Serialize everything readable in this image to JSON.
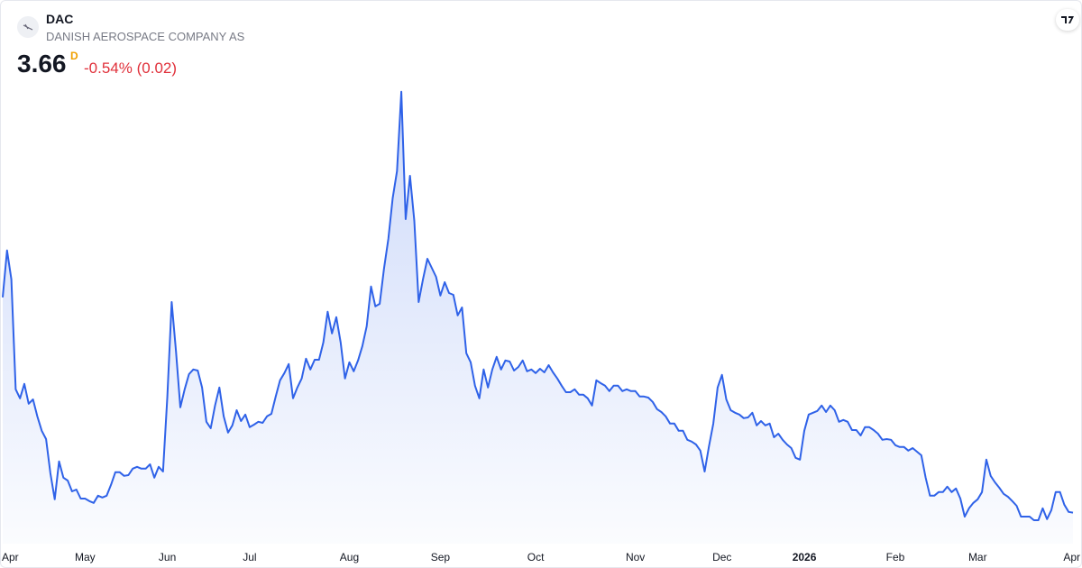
{
  "header": {
    "symbol": "DAC",
    "name": "DANISH AEROSPACE COMPANY AS",
    "last_price": 3.66,
    "price_marker": "D",
    "change_percent": "-0.54%",
    "change_amount": "(0.02)"
  },
  "chart_data": {
    "type": "area",
    "color": "#2f62e8",
    "values": [
      9.63,
      10.93,
      10.13,
      7.08,
      6.83,
      7.23,
      6.68,
      6.8,
      6.33,
      5.93,
      5.7,
      4.75,
      4.03,
      5.08,
      4.63,
      4.55,
      4.25,
      4.3,
      4.05,
      4.05,
      3.98,
      3.93,
      4.13,
      4.08,
      4.13,
      4.43,
      4.78,
      4.78,
      4.68,
      4.7,
      4.88,
      4.93,
      4.88,
      4.88,
      5,
      4.63,
      4.93,
      4.8,
      6.88,
      9.5,
      8.13,
      6.58,
      7.08,
      7.5,
      7.63,
      7.6,
      7.13,
      6.18,
      6,
      6.63,
      7.13,
      6.33,
      5.88,
      6.08,
      6.5,
      6.2,
      6.38,
      6.03,
      6.1,
      6.18,
      6.15,
      6.33,
      6.4,
      6.88,
      7.33,
      7.53,
      7.78,
      6.83,
      7.13,
      7.38,
      7.93,
      7.63,
      7.9,
      7.9,
      8.38,
      9.23,
      8.63,
      9.08,
      8.38,
      7.38,
      7.83,
      7.58,
      7.88,
      8.28,
      8.83,
      9.93,
      9.38,
      9.45,
      10.43,
      11.25,
      12.38,
      13.13,
      15.33,
      11.8,
      13,
      11.75,
      9.5,
      10.13,
      10.7,
      10.45,
      10.2,
      9.68,
      10.05,
      9.75,
      9.7,
      9.13,
      9.35,
      8.08,
      7.83,
      7.18,
      6.83,
      7.63,
      7.13,
      7.63,
      7.98,
      7.63,
      7.88,
      7.85,
      7.6,
      7.7,
      7.88,
      7.58,
      7.63,
      7.53,
      7.65,
      7.55,
      7.75,
      7.55,
      7.38,
      7.18,
      7,
      7,
      7.08,
      6.93,
      6.93,
      6.83,
      6.63,
      7.33,
      7.25,
      7.18,
      7.03,
      7.18,
      7.18,
      7.03,
      7.08,
      7.03,
      7.03,
      6.88,
      6.88,
      6.85,
      6.73,
      6.53,
      6.45,
      6.33,
      6.13,
      6.13,
      5.93,
      5.93,
      5.68,
      5.63,
      5.55,
      5.38,
      4.8,
      5.5,
      6.13,
      7.13,
      7.48,
      6.8,
      6.5,
      6.43,
      6.38,
      6.28,
      6.3,
      6.43,
      6.08,
      6.2,
      6.08,
      6.13,
      5.75,
      5.85,
      5.68,
      5.55,
      5.45,
      5.18,
      5.13,
      5.93,
      6.38,
      6.43,
      6.48,
      6.63,
      6.45,
      6.63,
      6.5,
      6.18,
      6.23,
      6.18,
      5.95,
      5.95,
      5.8,
      6.03,
      6.03,
      5.95,
      5.85,
      5.68,
      5.7,
      5.68,
      5.53,
      5.48,
      5.48,
      5.38,
      5.45,
      5.35,
      5.25,
      4.63,
      4.13,
      4.13,
      4.23,
      4.23,
      4.38,
      4.23,
      4.33,
      4.05,
      3.55,
      3.78,
      3.93,
      4.03,
      4.23,
      5.13,
      4.68,
      4.5,
      4.35,
      4.18,
      4.1,
      3.98,
      3.85,
      3.55,
      3.55,
      3.55,
      3.45,
      3.45,
      3.78,
      3.48,
      3.73,
      4.23,
      4.23,
      3.88,
      3.68,
      3.66
    ],
    "ylim": [
      3,
      16.5
    ],
    "xticks": [
      {
        "value": 2,
        "label": "Apr"
      },
      {
        "value": 19,
        "label": "May"
      },
      {
        "value": 38,
        "label": "Jun"
      },
      {
        "value": 57,
        "label": "Jul"
      },
      {
        "value": 80,
        "label": "Aug"
      },
      {
        "value": 101,
        "label": "Sep"
      },
      {
        "value": 123,
        "label": "Oct"
      },
      {
        "value": 146,
        "label": "Nov"
      },
      {
        "value": 166,
        "label": "Dec"
      },
      {
        "value": 185,
        "label": "2026",
        "bold": true
      },
      {
        "value": 206,
        "label": "Feb"
      },
      {
        "value": 225,
        "label": "Mar"
      },
      {
        "value": 247,
        "label": "Apr"
      }
    ]
  }
}
